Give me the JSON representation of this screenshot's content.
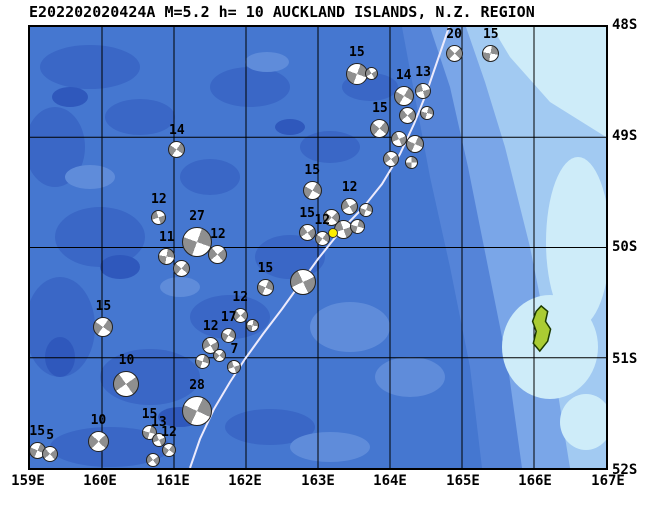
{
  "title": "E202202020424A M=5.2 h= 10 AUCKLAND ISLANDS, N.Z. REGION",
  "map": {
    "extent": {
      "lon_min": 159,
      "lon_max": 167,
      "south_min": 48,
      "south_max": 52
    },
    "lon_ticks": [
      "159E",
      "160E",
      "161E",
      "162E",
      "163E",
      "164E",
      "165E",
      "166E",
      "167E"
    ],
    "lat_ticks": [
      "48S",
      "49S",
      "50S",
      "51S",
      "52S"
    ],
    "grid_lons": [
      160,
      161,
      162,
      163,
      164,
      165,
      166
    ],
    "grid_lats": [
      49,
      50,
      51
    ],
    "colors": {
      "ocean": "#4577d0",
      "ocean_dark": "#3a67c6",
      "ocean_darker": "#2f58bc",
      "shelf_light": "#7aa6e8",
      "shelf_lighter": "#a2caf2",
      "shelf_lightest": "#ceecf9",
      "fault_line": "#eceafc",
      "beachball_gray": "#8f8f8f",
      "beachball_white": "#ffffff",
      "event_yellow": "#ffee00",
      "island_green": "#aacc33",
      "grid": "#000000"
    },
    "event": {
      "lon": 163.21,
      "south": 49.87,
      "size": 10
    },
    "island": {
      "name": "Auckland Islands",
      "points": [
        [
          166.1,
          50.53
        ],
        [
          166.19,
          50.58
        ],
        [
          166.16,
          50.67
        ],
        [
          166.23,
          50.74
        ],
        [
          166.19,
          50.85
        ],
        [
          166.08,
          50.94
        ],
        [
          165.99,
          50.87
        ],
        [
          166.03,
          50.76
        ],
        [
          165.98,
          50.67
        ],
        [
          166.03,
          50.58
        ]
      ]
    },
    "beachballs": [
      {
        "lon": 163.54,
        "south": 48.43,
        "d": 22,
        "rot": 20,
        "label": "15"
      },
      {
        "lon": 163.74,
        "south": 48.42,
        "d": 13,
        "rot": 60
      },
      {
        "lon": 164.89,
        "south": 48.24,
        "d": 17,
        "rot": 45,
        "label": "20"
      },
      {
        "lon": 165.4,
        "south": 48.24,
        "d": 17,
        "rot": 10,
        "label": "15"
      },
      {
        "lon": 164.19,
        "south": 48.63,
        "d": 20,
        "rot": 30,
        "label": "14"
      },
      {
        "lon": 164.46,
        "south": 48.58,
        "d": 16,
        "rot": 75,
        "label": "13"
      },
      {
        "lon": 164.24,
        "south": 48.8,
        "d": 17,
        "rot": 50
      },
      {
        "lon": 164.52,
        "south": 48.78,
        "d": 14,
        "rot": 15
      },
      {
        "lon": 163.86,
        "south": 48.92,
        "d": 19,
        "rot": 40,
        "label": "15"
      },
      {
        "lon": 164.13,
        "south": 49.02,
        "d": 16,
        "rot": 65
      },
      {
        "lon": 164.35,
        "south": 49.06,
        "d": 18,
        "rot": 25
      },
      {
        "lon": 164.02,
        "south": 49.2,
        "d": 16,
        "rot": 55
      },
      {
        "lon": 164.3,
        "south": 49.23,
        "d": 13,
        "rot": 0
      },
      {
        "lon": 161.04,
        "south": 49.11,
        "d": 17,
        "rot": 35,
        "label": "14"
      },
      {
        "lon": 160.79,
        "south": 49.73,
        "d": 15,
        "rot": 70,
        "label": "12"
      },
      {
        "lon": 161.32,
        "south": 49.95,
        "d": 30,
        "rot": 20,
        "label": "27"
      },
      {
        "lon": 161.61,
        "south": 50.06,
        "d": 19,
        "rot": 50,
        "label": "12"
      },
      {
        "lon": 160.9,
        "south": 50.08,
        "d": 17,
        "rot": 10,
        "label": "11"
      },
      {
        "lon": 161.1,
        "south": 50.19,
        "d": 17,
        "rot": 40
      },
      {
        "lon": 162.92,
        "south": 49.48,
        "d": 19,
        "rot": 30,
        "label": "15"
      },
      {
        "lon": 163.44,
        "south": 49.63,
        "d": 17,
        "rot": 60,
        "label": "12"
      },
      {
        "lon": 163.66,
        "south": 49.66,
        "d": 14,
        "rot": 20
      },
      {
        "lon": 163.19,
        "south": 49.73,
        "d": 17,
        "rot": 45
      },
      {
        "lon": 163.36,
        "south": 49.84,
        "d": 19,
        "rot": 70
      },
      {
        "lon": 163.55,
        "south": 49.81,
        "d": 15,
        "rot": 15
      },
      {
        "lon": 163.06,
        "south": 49.92,
        "d": 15,
        "rot": 35,
        "label": "12"
      },
      {
        "lon": 162.85,
        "south": 49.86,
        "d": 17,
        "rot": 55,
        "label": "15"
      },
      {
        "lon": 162.27,
        "south": 50.36,
        "d": 17,
        "rot": 25,
        "label": "15"
      },
      {
        "lon": 162.79,
        "south": 50.31,
        "d": 26,
        "rot": 65
      },
      {
        "lon": 161.92,
        "south": 50.62,
        "d": 15,
        "rot": 45,
        "label": "12"
      },
      {
        "lon": 162.09,
        "south": 50.71,
        "d": 13,
        "rot": 10
      },
      {
        "lon": 161.76,
        "south": 50.8,
        "d": 15,
        "rot": 30,
        "label": "17"
      },
      {
        "lon": 161.51,
        "south": 50.89,
        "d": 17,
        "rot": 60,
        "label": "12"
      },
      {
        "lon": 161.63,
        "south": 50.98,
        "d": 13,
        "rot": 40
      },
      {
        "lon": 161.39,
        "south": 51.03,
        "d": 15,
        "rot": 20
      },
      {
        "lon": 161.84,
        "south": 51.08,
        "d": 14,
        "rot": 70,
        "label": "7"
      },
      {
        "lon": 160.02,
        "south": 50.72,
        "d": 20,
        "rot": 35,
        "label": "15"
      },
      {
        "lon": 160.34,
        "south": 51.24,
        "d": 26,
        "rot": 55,
        "label": "10"
      },
      {
        "lon": 161.32,
        "south": 51.48,
        "d": 30,
        "rot": 25,
        "label": "28"
      },
      {
        "lon": 159.95,
        "south": 51.76,
        "d": 21,
        "rot": 45,
        "label": "10"
      },
      {
        "lon": 160.66,
        "south": 51.68,
        "d": 15,
        "rot": 15,
        "label": "15"
      },
      {
        "lon": 160.79,
        "south": 51.75,
        "d": 14,
        "rot": 65,
        "label": "13"
      },
      {
        "lon": 160.93,
        "south": 51.84,
        "d": 14,
        "rot": 35,
        "label": "12"
      },
      {
        "lon": 160.71,
        "south": 51.93,
        "d": 14,
        "rot": 55
      },
      {
        "lon": 159.1,
        "south": 51.84,
        "d": 17,
        "rot": 25,
        "label": "15"
      },
      {
        "lon": 159.28,
        "south": 51.87,
        "d": 16,
        "rot": 50,
        "label": "5"
      }
    ]
  }
}
